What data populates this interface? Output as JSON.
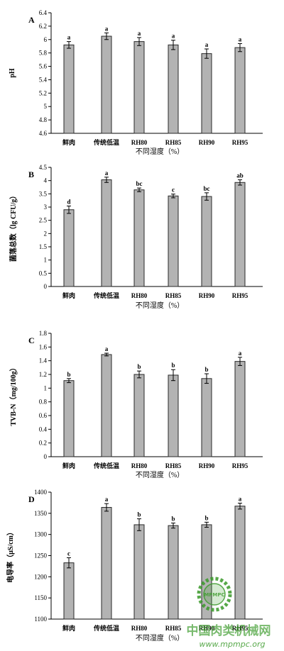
{
  "chart_data": [
    {
      "panel": "A",
      "type": "bar",
      "ylabel": "pH",
      "xlabel": "不同湿度（%）",
      "categories": [
        "鲜肉",
        "传统低温",
        "RH80",
        "RH85",
        "RH90",
        "RH95"
      ],
      "values": [
        5.92,
        6.05,
        5.97,
        5.92,
        5.79,
        5.88
      ],
      "errors": [
        0.05,
        0.05,
        0.06,
        0.07,
        0.07,
        0.06
      ],
      "letters": [
        "a",
        "a",
        "a",
        "a",
        "a",
        "a"
      ],
      "ylim": [
        4.6,
        6.4
      ],
      "yticks": [
        "4.6",
        "4.8",
        "5",
        "5.2",
        "5.4",
        "5.6",
        "5.8",
        "6",
        "6.2",
        "6.4"
      ]
    },
    {
      "panel": "B",
      "type": "bar",
      "ylabel": "菌落总数（lg CFU/g）",
      "xlabel": "不同湿度（%）",
      "categories": [
        "鲜肉",
        "传统低温",
        "RH80",
        "RH85",
        "RH90",
        "RH95"
      ],
      "values": [
        2.9,
        4.03,
        3.65,
        3.42,
        3.4,
        3.93
      ],
      "errors": [
        0.14,
        0.1,
        0.07,
        0.07,
        0.14,
        0.1
      ],
      "letters": [
        "d",
        "a",
        "bc",
        "c",
        "bc",
        "ab"
      ],
      "ylim": [
        0,
        4.5
      ],
      "yticks": [
        "0",
        "0.5",
        "1",
        "1.5",
        "2",
        "2.5",
        "3",
        "3.5",
        "4",
        "4.5"
      ]
    },
    {
      "panel": "C",
      "type": "bar",
      "ylabel": "TVB-N（mg/100g）",
      "xlabel": "不同湿度（%）",
      "categories": [
        "鲜肉",
        "传统低温",
        "RH80",
        "RH85",
        "RH90",
        "RH95"
      ],
      "values": [
        1.11,
        1.49,
        1.2,
        1.19,
        1.14,
        1.39
      ],
      "errors": [
        0.03,
        0.02,
        0.05,
        0.08,
        0.07,
        0.06
      ],
      "letters": [
        "b",
        "a",
        "b",
        "b",
        "b",
        "a"
      ],
      "ylim": [
        0,
        1.8
      ],
      "yticks": [
        "0",
        "0.2",
        "0.4",
        "0.6",
        "0.8",
        "1",
        "1.2",
        "1.4",
        "1.6",
        "1.8"
      ]
    },
    {
      "panel": "D",
      "type": "bar",
      "ylabel": "电导率（μS/cm）",
      "xlabel": "不同湿度（%）",
      "categories": [
        "鲜肉",
        "传统低温",
        "RH80",
        "RH85",
        "RH90",
        "RH95"
      ],
      "values": [
        1233,
        1364,
        1323,
        1321,
        1323,
        1367
      ],
      "errors": [
        12,
        9,
        14,
        6,
        6,
        7
      ],
      "letters": [
        "c",
        "a",
        "b",
        "b",
        "b",
        "a"
      ],
      "ylim": [
        1100,
        1400
      ],
      "yticks": [
        "1100",
        "1150",
        "1200",
        "1250",
        "1300",
        "1350",
        "1400"
      ]
    }
  ],
  "watermark": {
    "site_name": "中国肉类机械网",
    "site_url": "www.mpmpc.org",
    "logo_text": "MPMPC",
    "color": "#3a9a2a"
  },
  "colors": {
    "bar_fill": "#b3b3b3",
    "bar_stroke": "#2a2a2a",
    "axis": "#000000"
  }
}
